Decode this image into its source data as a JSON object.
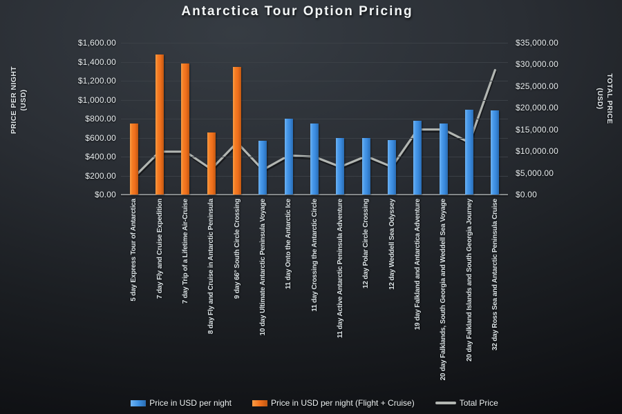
{
  "title": "Antarctica Tour Option Pricing",
  "axes": {
    "left": {
      "title_line1": "PRICE PER NIGHT",
      "title_line2": "(USD)",
      "tick_labels": [
        "$1,600.00",
        "$1,400.00",
        "$1,200.00",
        "$1,000.00",
        "$800.00",
        "$600.00",
        "$400.00",
        "$200.00",
        "$0.00"
      ],
      "range": [
        0,
        1600
      ]
    },
    "right": {
      "title_line1": "TOTAL PRICE",
      "title_line2": "(USD)",
      "tick_labels": [
        "$35,000.00",
        "$30,000.00",
        "$25,000.00",
        "$20,000.00",
        "$15,000.00",
        "$10,000.00",
        "$5,000.00",
        "$0.00"
      ],
      "range": [
        0,
        35000
      ]
    }
  },
  "legend": [
    {
      "label": "Price in USD per night",
      "color": "#3F92E4",
      "marker": "bar"
    },
    {
      "label": "Price in USD per night (Flight + Cruise)",
      "color": "#F2711C",
      "marker": "bar"
    },
    {
      "label": "Total Price",
      "color": "#B2B6B2",
      "marker": "line"
    }
  ],
  "chart_data": {
    "type": "bar",
    "title": "Antarctica Tour Option Pricing",
    "xlabel": "",
    "ylabel_left": "PRICE PER NIGHT (USD)",
    "ylabel_right": "TOTAL PRICE (USD)",
    "left_axis_range": [
      0,
      1600
    ],
    "right_axis_range": [
      0,
      35000
    ],
    "grid": true,
    "legend_position": "bottom",
    "categories": [
      "5 day Express Tour of Antarctica",
      "7 day Fly and Cruise Expedition",
      "7 day Trip of a Lifetime Air-Cruise",
      "8 day Fly and Cruise in Antarctic Peninsula",
      "9 day 66° South Circle Crossing",
      "10 day Ultimate Antarctic Peninsula Voyage",
      "11 day Onto the Antarctic Ice",
      "11 day Crossing the Antarctic Circle",
      "11 day Active Antarctic Peninsula Adventure",
      "12 day Polar Circle Crossing",
      "12 day Weddell Sea Odyssey",
      "19 day Falkland and Antarctica Adventure",
      "20 day Falklands, South Georgia and Weddell Sea Voyage",
      "20 day Falkland Islands and South Georgia Journey",
      "32 day Ross Sea and Antarctic Peninsula Cruise"
    ],
    "series": [
      {
        "name": "Price in USD per night",
        "type": "bar",
        "axis": "left",
        "color": "#3F92E4",
        "values": [
          null,
          null,
          null,
          null,
          null,
          570,
          800,
          750,
          595,
          595,
          575,
          775,
          750,
          895,
          890
        ]
      },
      {
        "name": "Price in USD per night (Flight + Cruise)",
        "type": "bar",
        "axis": "left",
        "color": "#F2711C",
        "values": [
          750,
          1475,
          1380,
          655,
          1345,
          null,
          null,
          null,
          null,
          null,
          null,
          null,
          null,
          null,
          null
        ]
      },
      {
        "name": "Total Price",
        "type": "line",
        "axis": "right",
        "color": "#B2B6B2",
        "values": [
          4000,
          9900,
          9900,
          5850,
          12000,
          5700,
          9000,
          8700,
          6400,
          8850,
          6400,
          15000,
          15000,
          12000,
          28700
        ]
      }
    ]
  }
}
